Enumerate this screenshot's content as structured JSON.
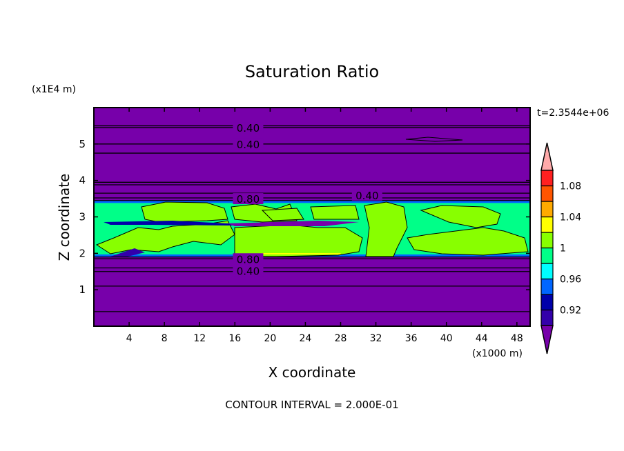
{
  "chart_data": {
    "type": "heatmap",
    "title": "Saturation Ratio",
    "xlabel": "X coordinate",
    "ylabel": "Z coordinate",
    "x_unit": "(x1000 m)",
    "y_unit": "(x1E4 m)",
    "xlim": [
      0,
      49.5
    ],
    "ylim": [
      0,
      6
    ],
    "x_ticks": [
      4,
      8,
      12,
      16,
      20,
      24,
      28,
      32,
      36,
      40,
      44,
      48
    ],
    "y_ticks": [
      1,
      2,
      3,
      4,
      5
    ],
    "time_label": "t=2.3544e+06",
    "footer": "CONTOUR INTERVAL = 2.000E-01",
    "contour_labels": [
      {
        "text": "0.40",
        "x": 17.5,
        "z": 5.45
      },
      {
        "text": "0.40",
        "x": 17.5,
        "z": 5.0
      },
      {
        "text": "0.40",
        "x": 31,
        "z": 3.6
      },
      {
        "text": "0.80",
        "x": 17.5,
        "z": 3.5
      },
      {
        "text": "0.80",
        "x": 17.5,
        "z": 1.85
      },
      {
        "text": "0.40",
        "x": 17.5,
        "z": 1.52
      }
    ],
    "moist_layer_z": [
      1.95,
      3.4
    ],
    "colorbar": {
      "levels": [
        0.9,
        0.92,
        0.94,
        0.96,
        0.98,
        1.0,
        1.02,
        1.04,
        1.06,
        1.08,
        1.1
      ],
      "tick_labels": [
        "0.92",
        "0.96",
        "1",
        "1.04",
        "1.08"
      ],
      "tick_values": [
        0.92,
        0.96,
        1.0,
        1.04,
        1.08
      ],
      "colors": [
        "#3300aa",
        "#0000aa",
        "#0066ff",
        "#00ffff",
        "#00ff88",
        "#88ff00",
        "#ffff00",
        "#ffaa00",
        "#ff5500",
        "#ff2020"
      ],
      "under_color": "#7700aa",
      "over_color": "#ffaaaa"
    }
  }
}
